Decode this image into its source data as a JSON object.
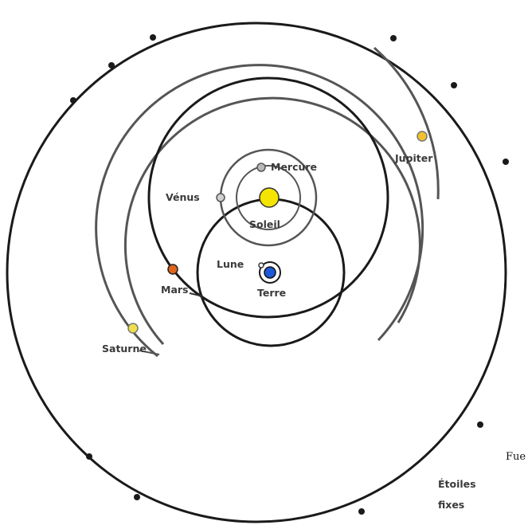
{
  "labels": {
    "mercure": "Mercure",
    "venus": "Vénus",
    "soleil": "Soleil",
    "lune": "Lune",
    "terre": "Terre",
    "mars": "Mars",
    "jupiter": "Jupiter",
    "saturne": "Saturne",
    "fixed_stars_line1": "Étoiles",
    "fixed_stars_line2": "fixes"
  },
  "caption": "Fue",
  "colors": {
    "sun": "#f5e400",
    "earth": "#1d5ad8",
    "mars": "#e0641a",
    "jupiter": "#f2c12e",
    "saturn": "#efe04a",
    "mercury": "#b8b8b8",
    "venus": "#cfcfcf",
    "orbit_dark": "#1a1a1a",
    "orbit_gray": "#555555"
  }
}
